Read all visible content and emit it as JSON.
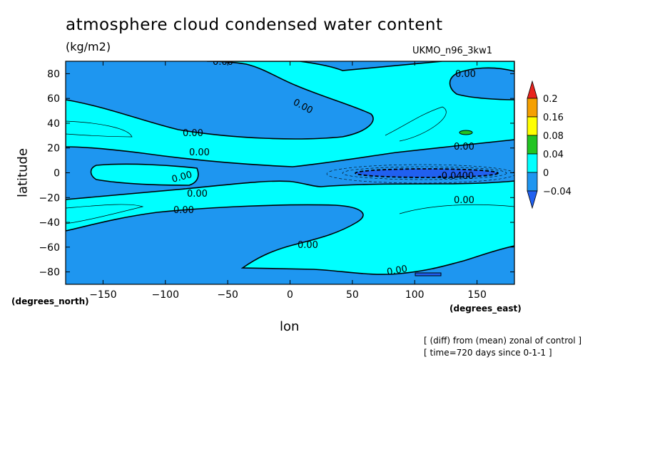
{
  "chart_data": {
    "type": "heatmap",
    "title": "atmosphere cloud condensed water content",
    "units": "(kg/m2)",
    "model": "UKMO_n96_3kw1",
    "xlabel": "lon",
    "ylabel": "latitude",
    "x_unit_label": "(degrees_east)",
    "y_unit_label": "(degrees_north)",
    "xlim": [
      -180,
      180
    ],
    "ylim": [
      -90,
      90
    ],
    "x_ticks": [
      -150,
      -100,
      -50,
      0,
      50,
      100,
      150
    ],
    "y_ticks": [
      -80,
      -60,
      -40,
      -20,
      0,
      20,
      40,
      60,
      80
    ],
    "contour_labels": [
      "0.00",
      "-0.0400"
    ],
    "notes": [
      "[ (diff) from (mean) zonal of control ]",
      "[ time=720 days since 0-1-1 ]"
    ],
    "colorbar": {
      "levels": [
        "0.2",
        "0.16",
        "0.08",
        "0.04",
        "0",
        "-0.04"
      ],
      "colors": [
        "#e8231e",
        "#f5a000",
        "#ffff00",
        "#22c422",
        "#00ffff",
        "#1e96f0",
        "#2060f0"
      ]
    }
  }
}
